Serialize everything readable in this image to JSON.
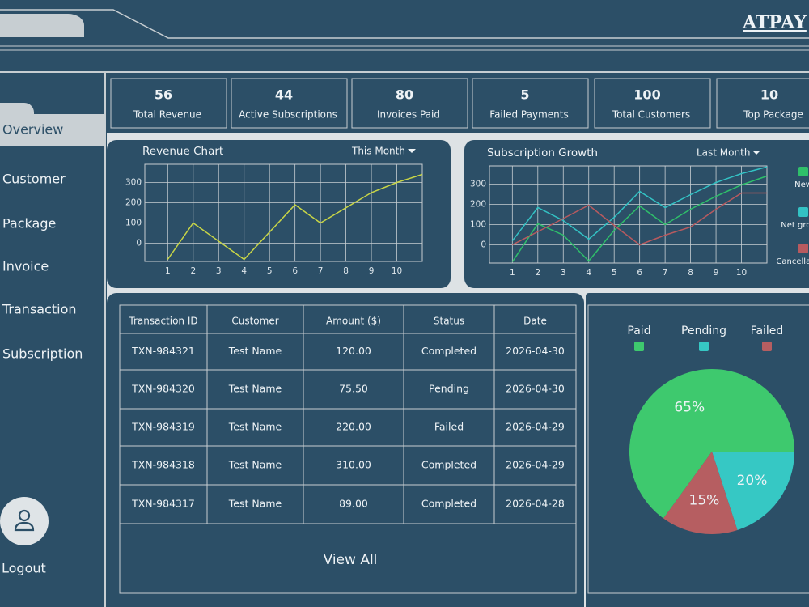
{
  "brand": "ATPAY",
  "nav": [
    "Overview",
    "Customer",
    "Package",
    "Invoice",
    "Transaction",
    "Subscription"
  ],
  "logout": "Logout",
  "stats": [
    {
      "value": 56,
      "label": "Total Revenue"
    },
    {
      "value": 44,
      "label": "Active Subscriptions"
    },
    {
      "value": 80,
      "label": "Invoices Paid"
    },
    {
      "value": 5,
      "label": "Failed Payments"
    },
    {
      "value": 100,
      "label": "Total Customers"
    },
    {
      "value": 10,
      "label": "Top Package"
    }
  ],
  "chart_data": [
    {
      "type": "line",
      "title": "Revenue Chart",
      "period": "This Month",
      "x": [
        1,
        2,
        4,
        6,
        7,
        9,
        10,
        11
      ],
      "values": [
        -80,
        100,
        -80,
        190,
        100,
        250,
        300,
        340
      ],
      "color": "#c9d646",
      "xlim": [
        0.1,
        11
      ],
      "ylim": [
        -90,
        390
      ],
      "xticks": [
        1,
        2,
        3,
        4,
        5,
        6,
        7,
        8,
        9,
        10
      ],
      "yticks": [
        0,
        100,
        200,
        300
      ],
      "grid": true
    },
    {
      "type": "line",
      "title": "Subscription Growth",
      "period": "Last Month",
      "x": [
        1,
        2,
        3,
        4,
        5,
        6,
        7,
        8,
        9,
        10,
        11
      ],
      "series": [
        {
          "name": "New",
          "color": "#2fbf6a",
          "values": [
            -84,
            104,
            48,
            -80,
            72,
            192,
            100,
            176,
            240,
            296,
            340
          ]
        },
        {
          "name": "Net growth",
          "color": "#33c2c4",
          "values": [
            20,
            184,
            120,
            28,
            136,
            264,
            184,
            248,
            308,
            352,
            385
          ]
        },
        {
          "name": "Cancellations",
          "color": "#b85a5f",
          "values": [
            0,
            65,
            130,
            196,
            96,
            0,
            48,
            88,
            176,
            256,
            256
          ]
        }
      ],
      "xlim": [
        0.1,
        11
      ],
      "ylim": [
        -90,
        390
      ],
      "xticks": [
        1,
        2,
        3,
        4,
        5,
        6,
        7,
        8,
        9,
        10
      ],
      "yticks": [
        0,
        100,
        200,
        300
      ],
      "grid": true,
      "legend": "right"
    },
    {
      "type": "pie",
      "categories": [
        "Paid",
        "Pending",
        "Failed"
      ],
      "values": [
        65,
        20,
        15
      ],
      "value_labels": [
        "65%",
        "20%",
        "15%"
      ],
      "colors": [
        "#3ec96e",
        "#36c8c4",
        "#b65e61"
      ],
      "legend": "top"
    }
  ],
  "table": {
    "columns": [
      "Transaction ID",
      "Customer",
      "Amount ($)",
      "Status",
      "Date"
    ],
    "rows": [
      [
        "TXN-984321",
        "Test Name",
        "120.00",
        "Completed",
        "2026-04-30"
      ],
      [
        "TXN-984320",
        "Test Name",
        "75.50",
        "Pending",
        "2026-04-30"
      ],
      [
        "TXN-984319",
        "Test Name",
        "220.00",
        "Failed",
        "2026-04-29"
      ],
      [
        "TXN-984318",
        "Test Name",
        "310.00",
        "Completed",
        "2026-04-29"
      ],
      [
        "TXN-984317",
        "Test Name",
        "89.00",
        "Completed",
        "2026-04-28"
      ]
    ]
  },
  "view_all": "View All"
}
